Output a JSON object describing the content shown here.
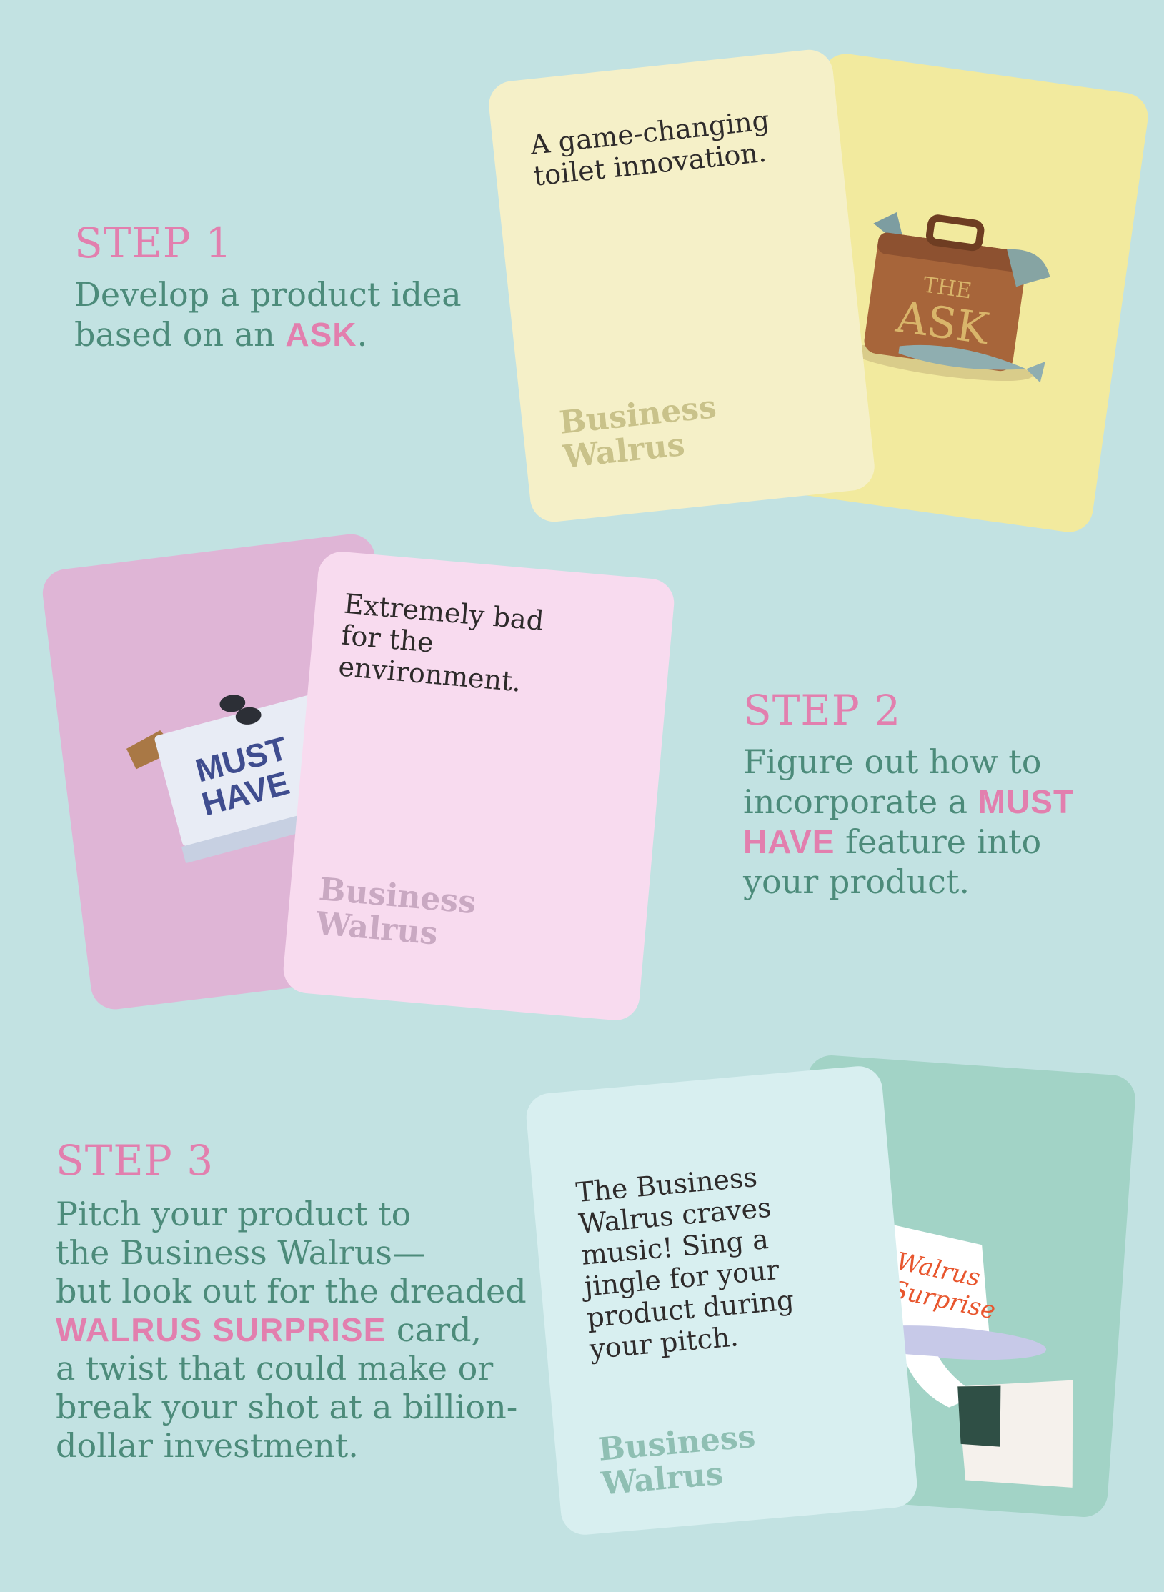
{
  "step1": {
    "title": "STEP 1",
    "line1": "Develop a product idea",
    "line2_pre": "based on an ",
    "line2_hl": "ASK",
    "line2_post": ".",
    "card_text": "A game-changing toilet innovation.",
    "brand_1": "Business",
    "brand_2": "Walrus",
    "art_label_1": "THE",
    "art_label_2": "ASK"
  },
  "step2": {
    "title": "STEP 2",
    "line1": "Figure out how to",
    "line2_pre": "incorporate a ",
    "line2_hl": "MUST",
    "line3_hl": "HAVE",
    "line3_post": " feature into",
    "line4": "your product.",
    "card_text": "Extremely bad for the environment.",
    "brand_1": "Business",
    "brand_2": "Walrus",
    "art_label_1": "MUST",
    "art_label_2": "HAVE"
  },
  "step3": {
    "title": "STEP 3",
    "line1": "Pitch your product to",
    "line2": "the Business Walrus—",
    "line3": "but look out for the dreaded",
    "line4_hl": "WALRUS SURPRISE",
    "line4_post": " card,",
    "line5": "a twist that could make or",
    "line6": "break your shot at a billion-",
    "line7": "dollar investment.",
    "card_text": "The Business Walrus craves music! Sing a jingle for your product during your pitch.",
    "brand_1": "Business",
    "brand_2": "Walrus",
    "art_label_1": "Walrus",
    "art_label_2": "Surprise"
  },
  "colors": {
    "background": "#c2e2e2",
    "pink_accent": "#e27fae",
    "green_text": "#4c8b7a"
  }
}
